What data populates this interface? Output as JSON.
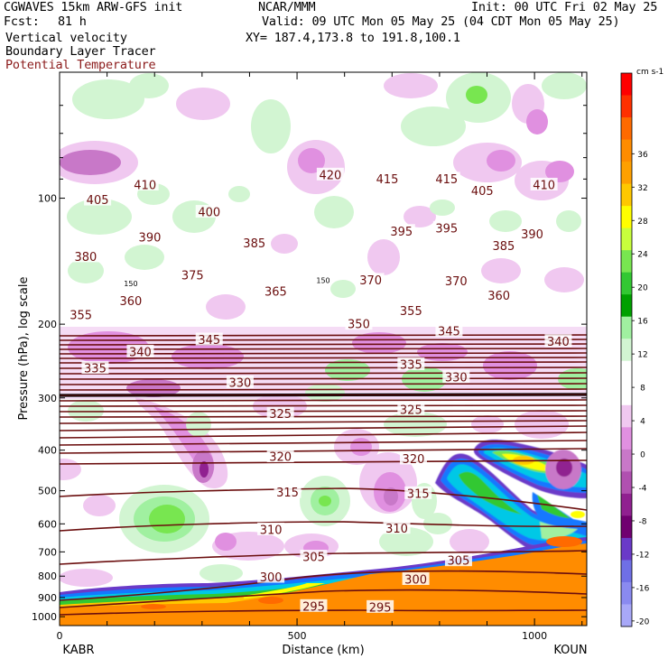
{
  "header": {
    "model": "CGWAVES 15km ARW-GFS init",
    "fcst_label": "Fcst:",
    "fcst_value": "81 h",
    "field1": "Vertical velocity",
    "field2": "Boundary Layer Tracer",
    "field3": "Potential Temperature",
    "org": "NCAR/MMM",
    "init": "Init: 00 UTC Fri 02 May 25",
    "valid": "Valid: 09 UTC Mon 05 May 25 (04 CDT Mon 05 May 25)",
    "xy": "XY= 187.4,173.8 to 191.8,100.1"
  },
  "chart_data": {
    "type": "heatmap",
    "xlabel": "Distance (km)",
    "ylabel": "Pressure (hPa), log scale",
    "x_range": [
      0,
      1110
    ],
    "y_range_hpa": [
      1050,
      50
    ],
    "y_scale": "log",
    "x_ticks": [
      "0",
      "500",
      "1000"
    ],
    "y_ticks": [
      "100",
      "200",
      "300",
      "400",
      "500",
      "600",
      "700",
      "800",
      "900",
      "1000"
    ],
    "x_start_label": "KABR",
    "x_end_label": "KOUN",
    "colorbar": {
      "unit": "cm s-1",
      "tick_labels": [
        "36",
        "32",
        "28",
        "24",
        "20",
        "16",
        "12",
        "8",
        "4",
        "0",
        "-4",
        "-8",
        "-12",
        "-16",
        "-20"
      ],
      "colors": [
        "#ff0000",
        "#ff3000",
        "#ff6a00",
        "#ff8c00",
        "#ffa000",
        "#ffc800",
        "#ffff00",
        "#c8ff3c",
        "#78e650",
        "#32c832",
        "#00a000",
        "#a0f0a0",
        "#d2f5d2",
        "#ffffff",
        "#ffffff",
        "#f0c8f0",
        "#e090e0",
        "#c878c8",
        "#b050b0",
        "#902090",
        "#700070",
        "#6a3ac8",
        "#6f6fe6",
        "#8a8af0",
        "#a8a8f8"
      ]
    },
    "theta_labels": [
      {
        "v": "420",
        "x": 570,
        "p": 88
      },
      {
        "v": "415",
        "x": 690,
        "p": 90
      },
      {
        "v": "415",
        "x": 815,
        "p": 90
      },
      {
        "v": "405",
        "x": 80,
        "p": 101
      },
      {
        "v": "410",
        "x": 180,
        "p": 93
      },
      {
        "v": "405",
        "x": 890,
        "p": 96
      },
      {
        "v": "410",
        "x": 1020,
        "p": 93
      },
      {
        "v": "400",
        "x": 315,
        "p": 108
      },
      {
        "v": "390",
        "x": 190,
        "p": 124
      },
      {
        "v": "395",
        "x": 720,
        "p": 120
      },
      {
        "v": "395",
        "x": 815,
        "p": 118
      },
      {
        "v": "390",
        "x": 995,
        "p": 122
      },
      {
        "v": "380",
        "x": 55,
        "p": 138
      },
      {
        "v": "385",
        "x": 410,
        "p": 128
      },
      {
        "v": "385",
        "x": 935,
        "p": 130
      },
      {
        "v": "375",
        "x": 280,
        "p": 153
      },
      {
        "v": "370",
        "x": 655,
        "p": 157
      },
      {
        "v": "370",
        "x": 835,
        "p": 158
      },
      {
        "v": "365",
        "x": 455,
        "p": 167
      },
      {
        "v": "360",
        "x": 150,
        "p": 176
      },
      {
        "v": "360",
        "x": 925,
        "p": 171
      },
      {
        "v": "355",
        "x": 45,
        "p": 190
      },
      {
        "v": "355",
        "x": 740,
        "p": 186
      },
      {
        "v": "350",
        "x": 630,
        "p": 200
      },
      {
        "v": "345",
        "x": 315,
        "p": 218
      },
      {
        "v": "345",
        "x": 820,
        "p": 208
      },
      {
        "v": "340",
        "x": 170,
        "p": 233
      },
      {
        "v": "340",
        "x": 1050,
        "p": 220
      },
      {
        "v": "335",
        "x": 75,
        "p": 255
      },
      {
        "v": "335",
        "x": 740,
        "p": 250
      },
      {
        "v": "330",
        "x": 380,
        "p": 276
      },
      {
        "v": "330",
        "x": 835,
        "p": 268
      },
      {
        "v": "325",
        "x": 465,
        "p": 328
      },
      {
        "v": "325",
        "x": 740,
        "p": 320
      },
      {
        "v": "320",
        "x": 465,
        "p": 415
      },
      {
        "v": "320",
        "x": 745,
        "p": 420
      },
      {
        "v": "315",
        "x": 480,
        "p": 505
      },
      {
        "v": "315",
        "x": 755,
        "p": 508
      },
      {
        "v": "310",
        "x": 445,
        "p": 620
      },
      {
        "v": "310",
        "x": 710,
        "p": 615
      },
      {
        "v": "305",
        "x": 535,
        "p": 720
      },
      {
        "v": "305",
        "x": 840,
        "p": 735
      },
      {
        "v": "300",
        "x": 445,
        "p": 805
      },
      {
        "v": "300",
        "x": 750,
        "p": 815
      },
      {
        "v": "295",
        "x": 535,
        "p": 945
      },
      {
        "v": "295",
        "x": 675,
        "p": 950
      }
    ],
    "tropopause_labels": [
      {
        "v": "150",
        "x": 150,
        "p": 160
      },
      {
        "v": "150",
        "x": 555,
        "p": 157
      }
    ]
  }
}
